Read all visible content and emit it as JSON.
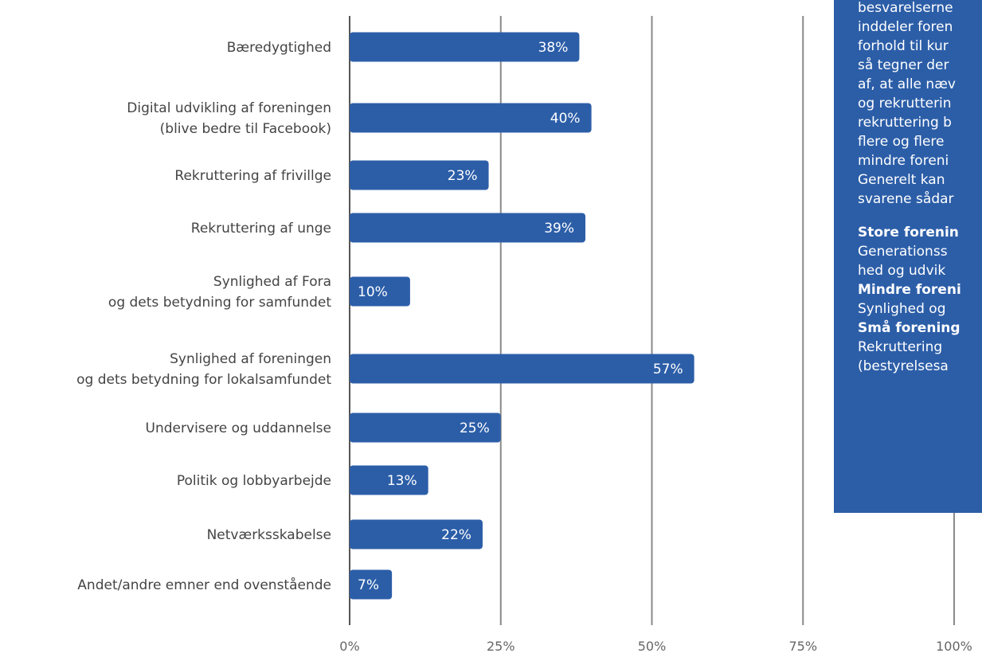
{
  "chart_data": {
    "type": "bar",
    "orientation": "horizontal",
    "categories": [
      [
        "Bæredygtighed"
      ],
      [
        "Digital udvikling af foreningen",
        "(blive bedre til Facebook)"
      ],
      [
        "Rekruttering af frivillge"
      ],
      [
        "Rekruttering af unge"
      ],
      [
        "Synlighed af Fora",
        "og dets betydning for samfundet"
      ],
      [
        "Synlighed af foreningen",
        "og dets betydning for lokalsamfundet"
      ],
      [
        "Undervisere og uddannelse"
      ],
      [
        "Politik og lobbyarbejde"
      ],
      [
        "Netværksskabelse"
      ],
      [
        "Andet/andre emner end ovenstående"
      ]
    ],
    "values": [
      38,
      40,
      23,
      39,
      10,
      57,
      25,
      13,
      22,
      7
    ],
    "value_labels": [
      "38%",
      "40%",
      "23%",
      "39%",
      "10%",
      "57%",
      "25%",
      "13%",
      "22%",
      "7%"
    ],
    "xlim": [
      0,
      100
    ],
    "ticks": [
      "0%",
      "25%",
      "50%",
      "75%",
      "100%"
    ],
    "grid": true,
    "bar_color": "#2c5ea8"
  },
  "info_box": {
    "lines": [
      {
        "text": "besvarelserne",
        "bold": false
      },
      {
        "text": "inddeler foren",
        "bold": false
      },
      {
        "text": "forhold til kur",
        "bold": false
      },
      {
        "text": "så tegner der",
        "bold": false
      },
      {
        "text": "af, at alle næv",
        "bold": false
      },
      {
        "text": "og rekrutterin",
        "bold": false
      },
      {
        "text": "rekruttering b",
        "bold": false
      },
      {
        "text": "flere og flere",
        "bold": false
      },
      {
        "text": "mindre foreni",
        "bold": false
      },
      {
        "text": "Generelt kan",
        "bold": false
      },
      {
        "text": "svarene sådar",
        "bold": false
      },
      {
        "text": "",
        "bold": false
      },
      {
        "text": "Store forenin",
        "bold": true
      },
      {
        "text": "Generationss",
        "bold": false
      },
      {
        "text": "hed og udvik",
        "bold": false
      },
      {
        "text": "Mindre foreni",
        "bold": true
      },
      {
        "text": "Synlighed og",
        "bold": false
      },
      {
        "text": "Små forening",
        "bold": true
      },
      {
        "text": "Rekruttering",
        "bold": false
      },
      {
        "text": "(bestyrelsesa",
        "bold": false
      }
    ]
  }
}
